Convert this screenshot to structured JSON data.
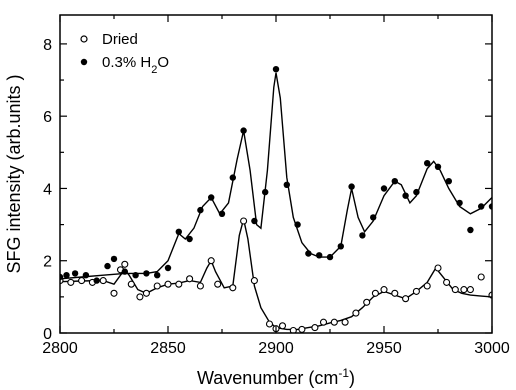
{
  "chart_data": {
    "type": "scatter",
    "title": "",
    "xlabel": "Wavenumber (cm",
    "xlabel_sup": "-1",
    "xlabel_end": ")",
    "ylabel": "SFG intensity (arb.units )",
    "xlim": [
      2800,
      3000
    ],
    "ylim": [
      0,
      8.8
    ],
    "x_ticks": [
      "2800",
      "2850",
      "2900",
      "2950",
      "3000"
    ],
    "y_ticks": [
      "0",
      "2",
      "4",
      "6",
      "8"
    ],
    "legend_position": "top-left",
    "grid": false,
    "series": [
      {
        "name": "Dried",
        "marker": "open-circle",
        "points": [
          [
            2800,
            1.45
          ],
          [
            2805,
            1.4
          ],
          [
            2810,
            1.45
          ],
          [
            2815,
            1.4
          ],
          [
            2820,
            1.45
          ],
          [
            2825,
            1.1
          ],
          [
            2828,
            1.75
          ],
          [
            2830,
            1.9
          ],
          [
            2833,
            1.35
          ],
          [
            2837,
            1.0
          ],
          [
            2840,
            1.1
          ],
          [
            2845,
            1.3
          ],
          [
            2850,
            1.35
          ],
          [
            2855,
            1.35
          ],
          [
            2860,
            1.5
          ],
          [
            2865,
            1.3
          ],
          [
            2870,
            2.0
          ],
          [
            2873,
            1.35
          ],
          [
            2880,
            1.25
          ],
          [
            2885,
            3.1
          ],
          [
            2890,
            1.45
          ],
          [
            2897,
            0.25
          ],
          [
            2900,
            0.12
          ],
          [
            2903,
            0.2
          ],
          [
            2908,
            0.07
          ],
          [
            2912,
            0.1
          ],
          [
            2918,
            0.15
          ],
          [
            2922,
            0.3
          ],
          [
            2927,
            0.3
          ],
          [
            2932,
            0.3
          ],
          [
            2937,
            0.55
          ],
          [
            2942,
            0.85
          ],
          [
            2946,
            1.1
          ],
          [
            2950,
            1.2
          ],
          [
            2955,
            1.1
          ],
          [
            2960,
            0.95
          ],
          [
            2965,
            1.15
          ],
          [
            2970,
            1.3
          ],
          [
            2975,
            1.8
          ],
          [
            2979,
            1.4
          ],
          [
            2983,
            1.2
          ],
          [
            2987,
            1.2
          ],
          [
            2990,
            1.2
          ],
          [
            2995,
            1.55
          ],
          [
            3000,
            1.05
          ]
        ],
        "fit": [
          [
            2800,
            1.42
          ],
          [
            2810,
            1.44
          ],
          [
            2820,
            1.45
          ],
          [
            2825,
            1.35
          ],
          [
            2828,
            1.6
          ],
          [
            2830,
            1.75
          ],
          [
            2832,
            1.6
          ],
          [
            2836,
            1.2
          ],
          [
            2840,
            1.1
          ],
          [
            2845,
            1.25
          ],
          [
            2850,
            1.35
          ],
          [
            2855,
            1.38
          ],
          [
            2860,
            1.45
          ],
          [
            2865,
            1.4
          ],
          [
            2868,
            1.8
          ],
          [
            2870,
            2.0
          ],
          [
            2872,
            1.7
          ],
          [
            2876,
            1.25
          ],
          [
            2880,
            1.3
          ],
          [
            2883,
            2.7
          ],
          [
            2885,
            3.15
          ],
          [
            2887,
            2.6
          ],
          [
            2890,
            1.3
          ],
          [
            2893,
            0.7
          ],
          [
            2897,
            0.3
          ],
          [
            2900,
            0.15
          ],
          [
            2905,
            0.1
          ],
          [
            2910,
            0.1
          ],
          [
            2915,
            0.15
          ],
          [
            2920,
            0.2
          ],
          [
            2925,
            0.28
          ],
          [
            2930,
            0.35
          ],
          [
            2935,
            0.45
          ],
          [
            2940,
            0.7
          ],
          [
            2945,
            1.0
          ],
          [
            2950,
            1.15
          ],
          [
            2955,
            1.05
          ],
          [
            2960,
            0.95
          ],
          [
            2965,
            1.15
          ],
          [
            2970,
            1.4
          ],
          [
            2974,
            1.8
          ],
          [
            2978,
            1.5
          ],
          [
            2982,
            1.2
          ],
          [
            2986,
            1.1
          ],
          [
            2990,
            1.05
          ],
          [
            2995,
            1.02
          ],
          [
            3000,
            1.0
          ]
        ]
      },
      {
        "name": "0.3% H",
        "name_sub": "2",
        "name_end": "O",
        "marker": "filled-circle",
        "points": [
          [
            2800,
            1.55
          ],
          [
            2803,
            1.6
          ],
          [
            2807,
            1.65
          ],
          [
            2812,
            1.6
          ],
          [
            2817,
            1.45
          ],
          [
            2822,
            1.85
          ],
          [
            2825,
            2.05
          ],
          [
            2830,
            1.7
          ],
          [
            2835,
            1.6
          ],
          [
            2840,
            1.65
          ],
          [
            2845,
            1.6
          ],
          [
            2850,
            1.8
          ],
          [
            2855,
            2.8
          ],
          [
            2860,
            2.6
          ],
          [
            2865,
            3.4
          ],
          [
            2870,
            3.75
          ],
          [
            2875,
            3.3
          ],
          [
            2880,
            4.3
          ],
          [
            2885,
            5.6
          ],
          [
            2890,
            3.1
          ],
          [
            2895,
            3.9
          ],
          [
            2900,
            7.3
          ],
          [
            2905,
            4.1
          ],
          [
            2910,
            3.0
          ],
          [
            2915,
            2.2
          ],
          [
            2920,
            2.15
          ],
          [
            2925,
            2.1
          ],
          [
            2930,
            2.4
          ],
          [
            2935,
            4.05
          ],
          [
            2940,
            2.7
          ],
          [
            2945,
            3.2
          ],
          [
            2950,
            4.0
          ],
          [
            2955,
            4.2
          ],
          [
            2960,
            3.8
          ],
          [
            2965,
            3.9
          ],
          [
            2970,
            4.7
          ],
          [
            2975,
            4.6
          ],
          [
            2980,
            4.2
          ],
          [
            2985,
            3.6
          ],
          [
            2990,
            2.85
          ],
          [
            2995,
            3.5
          ],
          [
            3000,
            3.5
          ]
        ],
        "fit": [
          [
            2800,
            1.5
          ],
          [
            2810,
            1.55
          ],
          [
            2820,
            1.6
          ],
          [
            2830,
            1.65
          ],
          [
            2840,
            1.65
          ],
          [
            2845,
            1.7
          ],
          [
            2850,
            2.0
          ],
          [
            2855,
            2.75
          ],
          [
            2858,
            2.6
          ],
          [
            2862,
            2.9
          ],
          [
            2866,
            3.5
          ],
          [
            2870,
            3.75
          ],
          [
            2874,
            3.3
          ],
          [
            2878,
            3.6
          ],
          [
            2882,
            4.8
          ],
          [
            2885,
            5.6
          ],
          [
            2888,
            4.5
          ],
          [
            2891,
            3.0
          ],
          [
            2893,
            2.9
          ],
          [
            2896,
            4.5
          ],
          [
            2899,
            6.8
          ],
          [
            2900,
            7.2
          ],
          [
            2902,
            6.5
          ],
          [
            2905,
            4.3
          ],
          [
            2908,
            3.2
          ],
          [
            2912,
            2.5
          ],
          [
            2916,
            2.2
          ],
          [
            2920,
            2.1
          ],
          [
            2925,
            2.1
          ],
          [
            2930,
            2.4
          ],
          [
            2933,
            3.4
          ],
          [
            2935,
            4.0
          ],
          [
            2938,
            3.2
          ],
          [
            2941,
            2.8
          ],
          [
            2945,
            3.1
          ],
          [
            2950,
            3.8
          ],
          [
            2955,
            4.2
          ],
          [
            2958,
            4.1
          ],
          [
            2962,
            3.6
          ],
          [
            2965,
            3.8
          ],
          [
            2970,
            4.55
          ],
          [
            2973,
            4.75
          ],
          [
            2976,
            4.5
          ],
          [
            2980,
            4.0
          ],
          [
            2985,
            3.5
          ],
          [
            2990,
            3.3
          ],
          [
            2995,
            3.45
          ],
          [
            3000,
            3.75
          ]
        ]
      }
    ]
  }
}
